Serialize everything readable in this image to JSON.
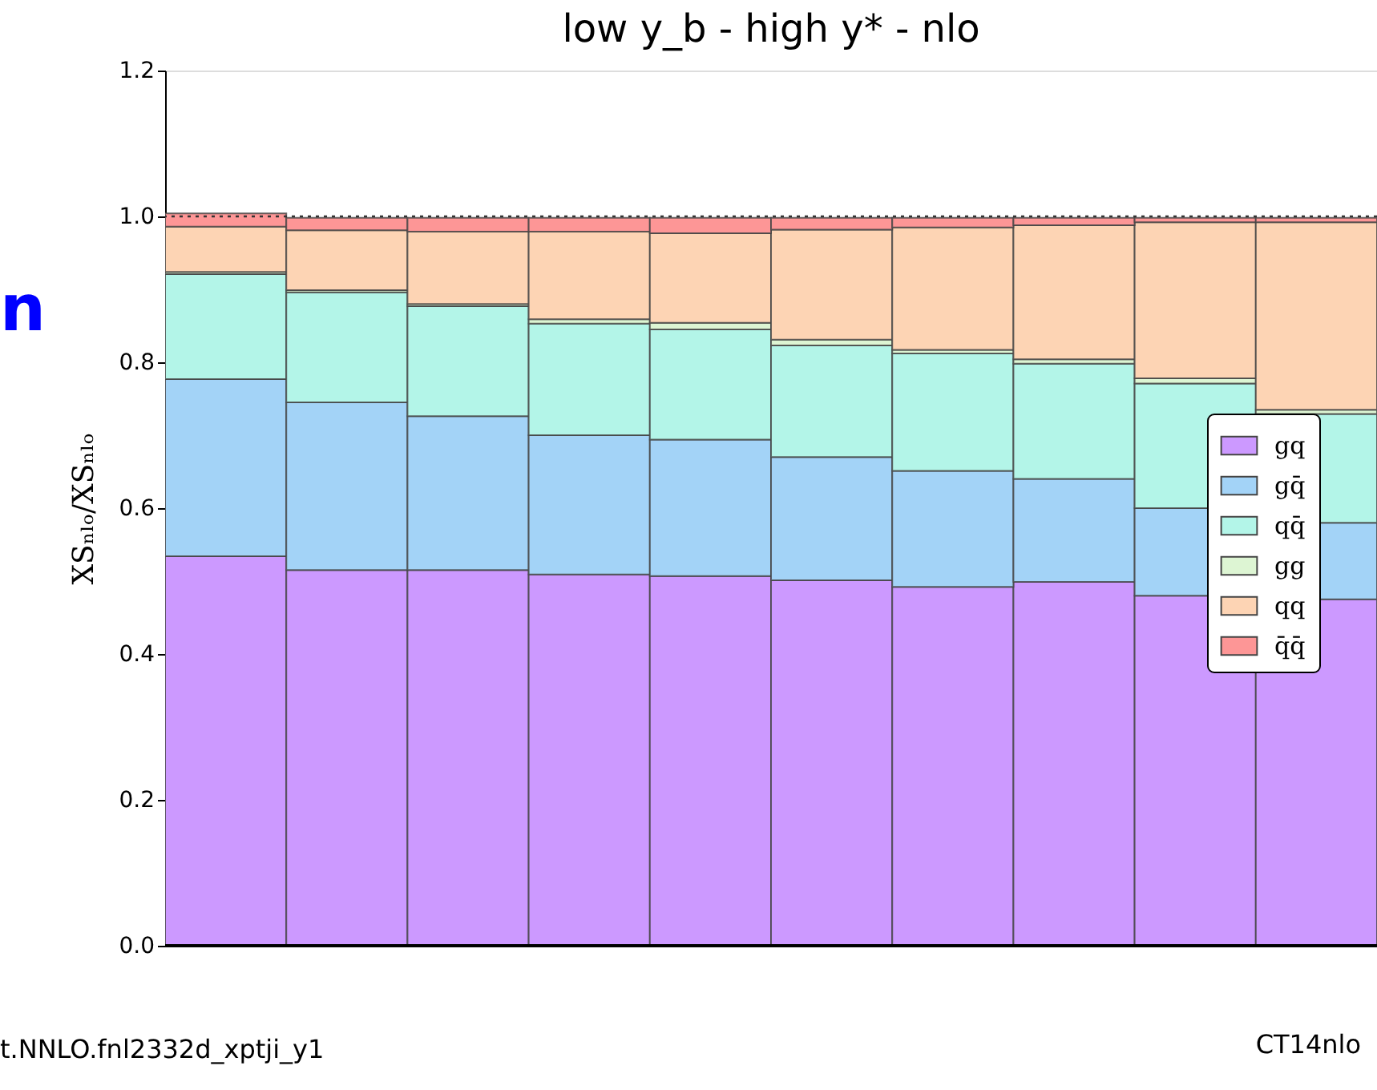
{
  "chart_data": {
    "type": "bar",
    "stacked": true,
    "title": "low y_b - high y* - nlo",
    "ylabel": "XSₙₗₒ/XSₙₗₒ",
    "categories": [
      null,
      null,
      null,
      null,
      null,
      null,
      null,
      null,
      null,
      null
    ],
    "series": [
      {
        "name": "gq",
        "color": "#cc99ff",
        "values": [
          0.534,
          0.515,
          0.515,
          0.509,
          0.507,
          0.501,
          0.492,
          0.499,
          0.48,
          0.475
        ]
      },
      {
        "name": "gq̄",
        "color": "#a3d3f7",
        "values": [
          0.243,
          0.23,
          0.211,
          0.191,
          0.187,
          0.169,
          0.159,
          0.141,
          0.12,
          0.105
        ]
      },
      {
        "name": "qq̄",
        "color": "#b3f5e8",
        "values": [
          0.144,
          0.151,
          0.151,
          0.153,
          0.151,
          0.153,
          0.161,
          0.158,
          0.171,
          0.149
        ]
      },
      {
        "name": "gg",
        "color": "#ddf5d3",
        "values": [
          0.003,
          0.003,
          0.003,
          0.006,
          0.009,
          0.008,
          0.005,
          0.006,
          0.007,
          0.006
        ]
      },
      {
        "name": "qq",
        "color": "#fdd4b4",
        "values": [
          0.062,
          0.082,
          0.099,
          0.12,
          0.123,
          0.151,
          0.168,
          0.184,
          0.214,
          0.257
        ]
      },
      {
        "name": "q̄q̄",
        "color": "#fd9696",
        "values": [
          0.018,
          0.017,
          0.019,
          0.019,
          0.021,
          0.016,
          0.013,
          0.01,
          0.006,
          0.006
        ]
      }
    ],
    "ylim": [
      0,
      1.2
    ],
    "yticks": [
      {
        "value": 0,
        "label": "0.0"
      },
      {
        "value": 0.2,
        "label": "0.2"
      },
      {
        "value": 0.4,
        "label": "0.4"
      },
      {
        "value": 0.6,
        "label": "0.6"
      },
      {
        "value": 0.8,
        "label": "0.8"
      },
      {
        "value": 1.0,
        "label": "1.0"
      },
      {
        "value": 1.2,
        "label": "1.2"
      }
    ],
    "tick_labels": "y",
    "grid": false,
    "legend": "right",
    "ref_lines": [
      {
        "axis": "y",
        "value": 1.0,
        "color": "#333333",
        "line_style": "dotted"
      }
    ],
    "annotations": [
      "n",
      "t.NNLO.fnl2332d_xptji_y1",
      "CT14nlo"
    ]
  }
}
